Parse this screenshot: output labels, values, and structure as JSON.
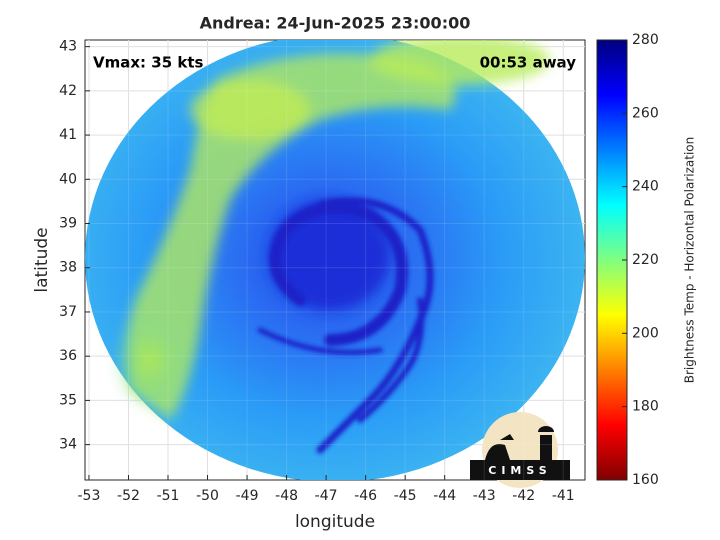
{
  "chart_data": {
    "type": "image",
    "title": "Andrea: 24-Jun-2025 23:00:00",
    "xlabel": "longitude",
    "ylabel": "latitude",
    "xlim": [
      -53.1,
      -40.45
    ],
    "xticks": [
      -53,
      -52,
      -51,
      -50,
      -49,
      -48,
      -47,
      -46,
      -45,
      -44,
      -43,
      -42,
      -41
    ],
    "ylim": [
      33.2,
      43.15
    ],
    "yticks": [
      34,
      35,
      36,
      37,
      38,
      39,
      40,
      41,
      42,
      43
    ],
    "grid": true,
    "annotations": [
      "Vmax: 35 kts",
      "00:53 away"
    ],
    "logo": "CIMSS",
    "colorbar": {
      "label": "Brightness Temp - Horizontal Polarization",
      "lim": [
        160,
        280
      ],
      "ticks": [
        160,
        180,
        200,
        220,
        240,
        260,
        280
      ],
      "colormap": "jet"
    }
  }
}
